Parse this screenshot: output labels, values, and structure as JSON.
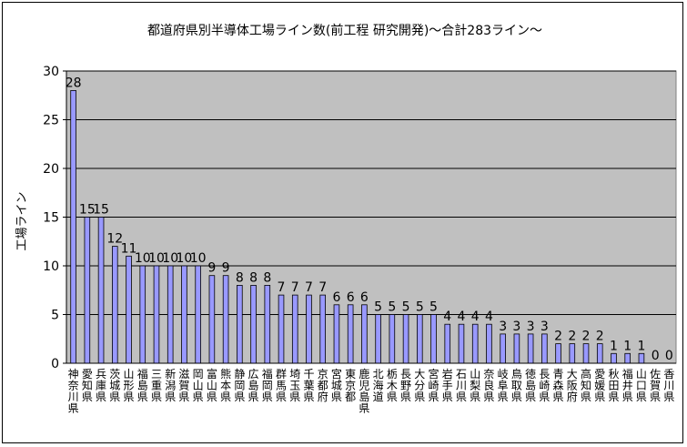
{
  "chart_data": {
    "type": "bar",
    "title": "都道府県別半導体工場ライン数(前工程 研究開発)～合計283ライン～",
    "xlabel": "",
    "ylabel": "工場ライン",
    "ylim": [
      0,
      30
    ],
    "yticks": [
      0,
      5,
      10,
      15,
      20,
      25,
      30
    ],
    "grid": true,
    "legend": "none",
    "colors": {
      "plot_bg": "#c0c0c0",
      "bar": "#9999ff",
      "bar_stroke": "#000000",
      "grid": "#000000"
    },
    "categories": [
      "神奈川県",
      "愛知県",
      "兵庫県",
      "茨城県",
      "山形県",
      "福島県",
      "三重県",
      "新潟県",
      "滋賀県",
      "岡山県",
      "富山県",
      "熊本県",
      "静岡県",
      "広島県",
      "福岡県",
      "群馬県",
      "埼玉県",
      "千葉県",
      "京都府",
      "宮城県",
      "東京都",
      "鹿児島県",
      "北海道",
      "栃木県",
      "長野県",
      "大分県",
      "宮崎県",
      "岩手県",
      "石川県",
      "山梨県",
      "奈良県",
      "岐阜県",
      "鳥取県",
      "徳島県",
      "長崎県",
      "青森県",
      "大阪府",
      "高知県",
      "愛媛県",
      "秋田県",
      "福井県",
      "山口県",
      "佐賀県",
      "香川県"
    ],
    "values": [
      28,
      15,
      15,
      12,
      11,
      10,
      10,
      10,
      10,
      10,
      9,
      9,
      8,
      8,
      8,
      7,
      7,
      7,
      7,
      6,
      6,
      6,
      5,
      5,
      5,
      5,
      5,
      4,
      4,
      4,
      4,
      3,
      3,
      3,
      3,
      2,
      2,
      2,
      2,
      1,
      1,
      1,
      0,
      0
    ]
  }
}
